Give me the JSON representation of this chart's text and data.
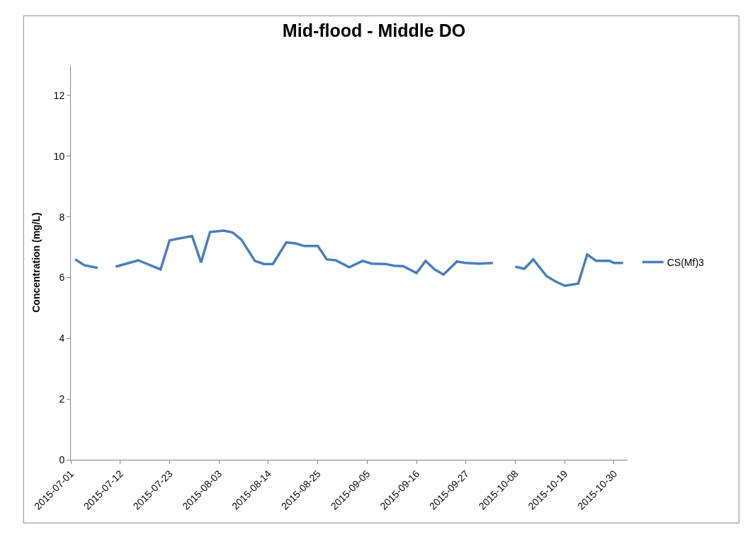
{
  "chart_data": {
    "type": "line",
    "title": "Mid-flood - Middle DO",
    "ylabel": "Concentration (mg/L)",
    "x": [
      "2015-07-02",
      "2015-07-04",
      "2015-07-07",
      "2015-07-09",
      "2015-07-11",
      "2015-07-16",
      "2015-07-21",
      "2015-07-23",
      "2015-07-28",
      "2015-07-30",
      "2015-08-01",
      "2015-08-04",
      "2015-08-06",
      "2015-08-08",
      "2015-08-11",
      "2015-08-13",
      "2015-08-15",
      "2015-08-18",
      "2015-08-20",
      "2015-08-22",
      "2015-08-25",
      "2015-08-27",
      "2015-08-29",
      "2015-09-01",
      "2015-09-04",
      "2015-09-06",
      "2015-09-09",
      "2015-09-11",
      "2015-09-13",
      "2015-09-16",
      "2015-09-18",
      "2015-09-20",
      "2015-09-22",
      "2015-09-25",
      "2015-09-27",
      "2015-09-30",
      "2015-10-03",
      "2015-10-06",
      "2015-10-08",
      "2015-10-10",
      "2015-10-12",
      "2015-10-15",
      "2015-10-17",
      "2015-10-19",
      "2015-10-22",
      "2015-10-24",
      "2015-10-26",
      "2015-10-29",
      "2015-10-30",
      "2015-11-01"
    ],
    "series": [
      {
        "name": "CS(Mf)3",
        "color": "#4a7ebb",
        "values": [
          6.6,
          6.41,
          6.32,
          null,
          6.36,
          6.57,
          6.27,
          7.23,
          7.37,
          6.5,
          7.5,
          7.55,
          7.49,
          7.25,
          6.55,
          6.45,
          6.45,
          7.16,
          7.13,
          7.04,
          7.04,
          6.6,
          6.57,
          6.34,
          6.55,
          6.46,
          6.45,
          6.39,
          6.38,
          6.15,
          6.55,
          6.27,
          6.1,
          6.53,
          6.48,
          6.46,
          6.48,
          null,
          6.36,
          6.29,
          6.6,
          6.04,
          5.87,
          5.73,
          5.8,
          6.76,
          6.55,
          6.55,
          6.48,
          6.48
        ]
      }
    ],
    "xlim": [
      "2015-07-01",
      "2015-11-02"
    ],
    "xticks": [
      "2015-07-01",
      "2015-07-12",
      "2015-07-23",
      "2015-08-03",
      "2015-08-14",
      "2015-08-25",
      "2015-09-05",
      "2015-09-16",
      "2015-09-27",
      "2015-10-08",
      "2015-10-19",
      "2015-10-30"
    ],
    "ylim": [
      0,
      13
    ],
    "yticks": [
      0,
      2,
      4,
      6,
      8,
      10,
      12
    ],
    "legend": "right",
    "marker": "none",
    "line_style": "solid"
  }
}
